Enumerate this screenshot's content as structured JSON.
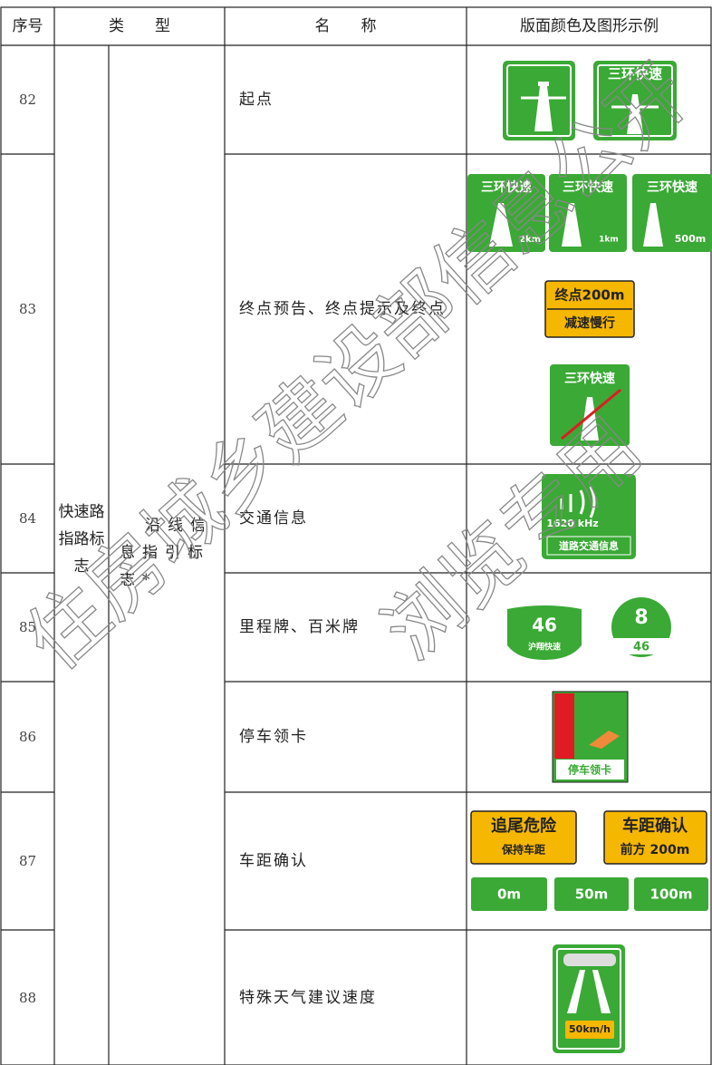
{
  "header": {
    "number": "序号",
    "type": "类　　型",
    "name": "名　　称",
    "example": "版面颜色及图形示例"
  },
  "category": {
    "main": "快速路指路标志",
    "sub": "沿线信息指引标志*"
  },
  "rows": [
    {
      "number": "82",
      "name": "起点",
      "signs": [
        "三环快速"
      ]
    },
    {
      "number": "83",
      "name": "终点预告、终点提示及终点",
      "signs": [
        "三环快速",
        "2km",
        "三环快速",
        "1km",
        "三环快速",
        "500m",
        "终点200m",
        "减速慢行",
        "三环快速"
      ]
    },
    {
      "number": "84",
      "name": "交通信息",
      "signs": [
        "1620 kHz",
        "道路交通信息"
      ]
    },
    {
      "number": "85",
      "name": "里程牌、百米牌",
      "signs": [
        "46",
        "沪翔快速",
        "8",
        "46"
      ]
    },
    {
      "number": "86",
      "name": "停车领卡",
      "signs": [
        "停车领卡"
      ]
    },
    {
      "number": "87",
      "name": "车距确认",
      "signs": [
        "追尾危险",
        "保持车距",
        "车距确认",
        "前方 200m",
        "0m",
        "50m",
        "100m"
      ]
    },
    {
      "number": "88",
      "name": "特殊天气建议速度",
      "signs": [
        "50km/h"
      ]
    }
  ],
  "watermark": [
    "住房城乡建设部信息公开",
    "浏览专用"
  ]
}
